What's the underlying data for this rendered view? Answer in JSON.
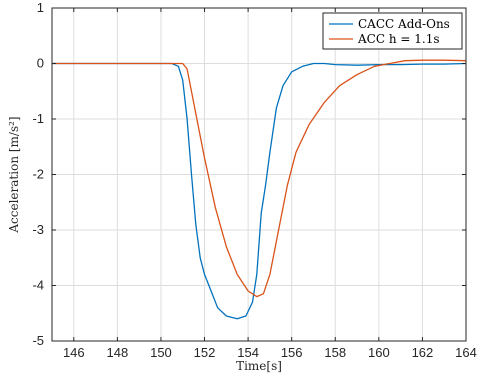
{
  "chart_data": {
    "type": "line",
    "xlabel": "Time[s]",
    "ylabel": "Acceleration [m/s²]",
    "xlim": [
      145,
      164
    ],
    "ylim": [
      -5,
      1
    ],
    "xticks": [
      146,
      148,
      150,
      152,
      154,
      156,
      158,
      160,
      162,
      164
    ],
    "yticks": [
      -5,
      -4,
      -3,
      -2,
      -1,
      0,
      1
    ],
    "xtick_labels": [
      "146",
      "148",
      "150",
      "152",
      "154",
      "156",
      "158",
      "160",
      "162",
      "164"
    ],
    "ytick_labels": [
      "-5",
      "-4",
      "-3",
      "-2",
      "-1",
      "0",
      "1"
    ],
    "grid": true,
    "legend_position": "top-right",
    "series": [
      {
        "name": "CACC Add-Ons",
        "color": "#0072BD",
        "x": [
          145,
          150.5,
          150.8,
          151.0,
          151.2,
          151.4,
          151.6,
          151.8,
          152.0,
          152.3,
          152.6,
          153.0,
          153.5,
          153.9,
          154.2,
          154.4,
          154.6,
          154.8,
          155.0,
          155.3,
          155.6,
          156.0,
          156.5,
          157.0,
          157.5,
          158.0,
          159.0,
          160.0,
          161.0,
          162.0,
          163.0,
          164.0
        ],
        "y": [
          0,
          0,
          -0.05,
          -0.3,
          -1.0,
          -2.0,
          -2.9,
          -3.5,
          -3.8,
          -4.1,
          -4.4,
          -4.55,
          -4.6,
          -4.55,
          -4.3,
          -3.8,
          -2.7,
          -2.2,
          -1.6,
          -0.8,
          -0.4,
          -0.15,
          -0.05,
          0.0,
          0.0,
          -0.02,
          -0.03,
          -0.02,
          -0.02,
          -0.01,
          -0.01,
          0.0
        ]
      },
      {
        "name": "ACC h = 1.1s",
        "color": "#D95319",
        "x": [
          145,
          151.0,
          151.2,
          151.5,
          152.0,
          152.5,
          153.0,
          153.5,
          154.0,
          154.4,
          154.7,
          155.0,
          155.4,
          155.8,
          156.2,
          156.8,
          157.5,
          158.2,
          159.0,
          159.8,
          160.5,
          161.2,
          162.0,
          163.0,
          164.0
        ],
        "y": [
          0,
          0,
          -0.1,
          -0.7,
          -1.7,
          -2.6,
          -3.3,
          -3.8,
          -4.1,
          -4.2,
          -4.15,
          -3.8,
          -3.0,
          -2.2,
          -1.6,
          -1.1,
          -0.7,
          -0.4,
          -0.2,
          -0.05,
          0.0,
          0.05,
          0.06,
          0.06,
          0.05
        ]
      }
    ]
  }
}
